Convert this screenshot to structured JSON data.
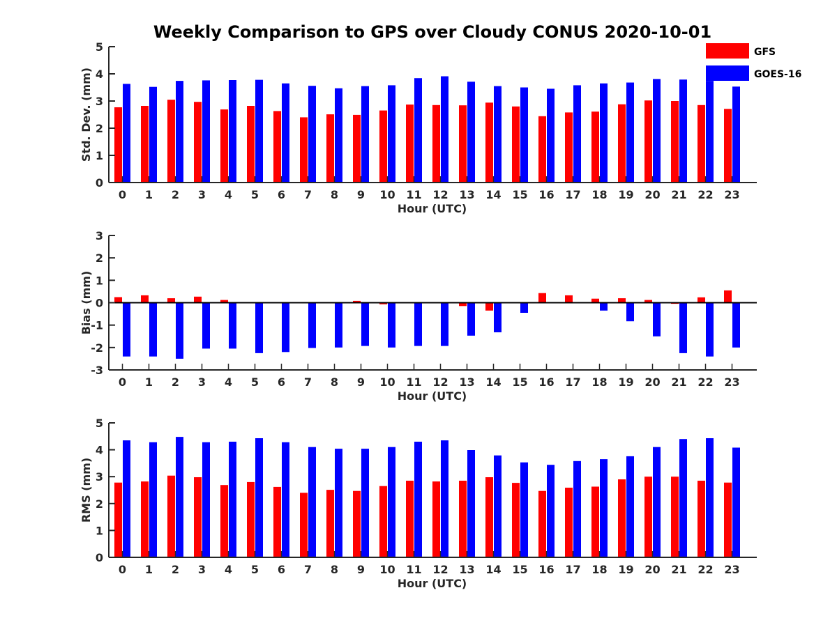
{
  "title": "Weekly Comparison to GPS over Cloudy CONUS 2020-10-01",
  "legend": {
    "placement": "top-right",
    "items": [
      {
        "label": "GFS",
        "color": "#ff0000"
      },
      {
        "label": "GOES-16",
        "color": "#0000ff"
      }
    ]
  },
  "chart_data": [
    {
      "type": "bar",
      "ylabel": "Std. Dev. (mm)",
      "xlabel": "Hour (UTC)",
      "ylim": [
        0,
        5
      ],
      "yticks": [
        0,
        1,
        2,
        3,
        4,
        5
      ],
      "categories": [
        "0",
        "1",
        "2",
        "3",
        "4",
        "5",
        "6",
        "7",
        "8",
        "9",
        "10",
        "11",
        "12",
        "13",
        "14",
        "15",
        "16",
        "17",
        "18",
        "19",
        "20",
        "21",
        "22",
        "23"
      ],
      "series": [
        {
          "name": "GFS",
          "color": "#ff0000",
          "values": [
            2.77,
            2.82,
            3.05,
            2.97,
            2.69,
            2.82,
            2.63,
            2.4,
            2.51,
            2.49,
            2.65,
            2.87,
            2.85,
            2.84,
            2.94,
            2.8,
            2.44,
            2.58,
            2.61,
            2.88,
            3.02,
            3.0,
            2.85,
            2.71
          ]
        },
        {
          "name": "GOES-16",
          "color": "#0000ff",
          "values": [
            3.63,
            3.52,
            3.74,
            3.76,
            3.77,
            3.78,
            3.65,
            3.56,
            3.47,
            3.55,
            3.58,
            3.84,
            3.91,
            3.71,
            3.55,
            3.5,
            3.45,
            3.58,
            3.65,
            3.68,
            3.81,
            3.79,
            3.74,
            3.53
          ]
        }
      ]
    },
    {
      "type": "bar",
      "ylabel": "Bias (mm)",
      "xlabel": "Hour (UTC)",
      "ylim": [
        -3,
        3
      ],
      "yticks": [
        -3,
        -2,
        -1,
        0,
        1,
        2,
        3
      ],
      "categories": [
        "0",
        "1",
        "2",
        "3",
        "4",
        "5",
        "6",
        "7",
        "8",
        "9",
        "10",
        "11",
        "12",
        "13",
        "14",
        "15",
        "16",
        "17",
        "18",
        "19",
        "20",
        "21",
        "22",
        "23"
      ],
      "series": [
        {
          "name": "GFS",
          "color": "#ff0000",
          "values": [
            0.25,
            0.33,
            0.2,
            0.27,
            0.12,
            0.0,
            -0.02,
            0.0,
            0.0,
            0.08,
            -0.07,
            0.0,
            0.0,
            -0.15,
            -0.35,
            0.0,
            0.43,
            0.33,
            0.18,
            0.2,
            0.12,
            -0.05,
            0.24,
            0.55
          ]
        },
        {
          "name": "GOES-16",
          "color": "#0000ff",
          "values": [
            -2.4,
            -2.4,
            -2.5,
            -2.05,
            -2.05,
            -2.25,
            -2.2,
            -2.02,
            -2.0,
            -1.93,
            -2.0,
            -1.93,
            -1.93,
            -1.47,
            -1.32,
            -0.45,
            0.03,
            -0.02,
            -0.35,
            -0.83,
            -1.5,
            -2.25,
            -2.4,
            -2.0
          ]
        }
      ]
    },
    {
      "type": "bar",
      "ylabel": "RMS (mm)",
      "xlabel": "Hour (UTC)",
      "ylim": [
        0,
        5
      ],
      "yticks": [
        0,
        1,
        2,
        3,
        4,
        5
      ],
      "categories": [
        "0",
        "1",
        "2",
        "3",
        "4",
        "5",
        "6",
        "7",
        "8",
        "9",
        "10",
        "11",
        "12",
        "13",
        "14",
        "15",
        "16",
        "17",
        "18",
        "19",
        "20",
        "21",
        "22",
        "23"
      ],
      "series": [
        {
          "name": "GFS",
          "color": "#ff0000",
          "values": [
            2.78,
            2.82,
            3.04,
            2.98,
            2.69,
            2.8,
            2.62,
            2.4,
            2.51,
            2.47,
            2.65,
            2.85,
            2.82,
            2.85,
            2.98,
            2.77,
            2.47,
            2.59,
            2.63,
            2.9,
            3.0,
            3.0,
            2.85,
            2.78
          ]
        },
        {
          "name": "GOES-16",
          "color": "#0000ff",
          "values": [
            4.35,
            4.28,
            4.48,
            4.28,
            4.3,
            4.43,
            4.28,
            4.1,
            4.04,
            4.04,
            4.1,
            4.3,
            4.35,
            3.99,
            3.79,
            3.53,
            3.44,
            3.58,
            3.65,
            3.76,
            4.1,
            4.4,
            4.43,
            4.08
          ]
        }
      ]
    }
  ]
}
